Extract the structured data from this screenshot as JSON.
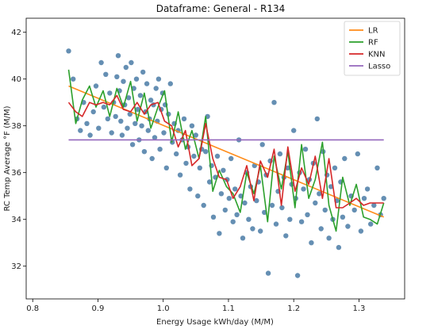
{
  "chart_data": {
    "type": "scatter",
    "title": "Dataframe: General - R134",
    "xlabel": "Energy Usage kWh/day (M/M)",
    "ylabel": "RC Temp Average °F (M/M)",
    "xlim": [
      0.79,
      1.37
    ],
    "ylim": [
      30.6,
      42.6
    ],
    "xticks": [
      "0.8",
      "0.9",
      "1.0",
      "1.1",
      "1.2",
      "1.3"
    ],
    "yticks": [
      "32",
      "34",
      "36",
      "38",
      "40",
      "42"
    ],
    "grid": false,
    "legend_position": "top-right",
    "scatter_color": "#4a7ba6",
    "points": [
      [
        0.855,
        41.2
      ],
      [
        0.862,
        40.0
      ],
      [
        0.868,
        38.3
      ],
      [
        0.873,
        37.8
      ],
      [
        0.878,
        39.0
      ],
      [
        0.883,
        38.1
      ],
      [
        0.888,
        37.6
      ],
      [
        0.893,
        38.6
      ],
      [
        0.897,
        39.7
      ],
      [
        0.901,
        37.9
      ],
      [
        0.905,
        40.7
      ],
      [
        0.909,
        38.8
      ],
      [
        0.912,
        40.2
      ],
      [
        0.915,
        38.3
      ],
      [
        0.918,
        39.4
      ],
      [
        0.921,
        37.7
      ],
      [
        0.924,
        39.0
      ],
      [
        0.927,
        38.4
      ],
      [
        0.929,
        40.1
      ],
      [
        0.931,
        41.0
      ],
      [
        0.933,
        39.5
      ],
      [
        0.935,
        38.2
      ],
      [
        0.937,
        37.6
      ],
      [
        0.939,
        39.9
      ],
      [
        0.941,
        38.9
      ],
      [
        0.943,
        40.5
      ],
      [
        0.945,
        37.9
      ],
      [
        0.947,
        39.2
      ],
      [
        0.949,
        38.5
      ],
      [
        0.951,
        40.7
      ],
      [
        0.953,
        37.2
      ],
      [
        0.955,
        39.6
      ],
      [
        0.957,
        38.1
      ],
      [
        0.959,
        40.0
      ],
      [
        0.961,
        38.7
      ],
      [
        0.963,
        37.4
      ],
      [
        0.965,
        39.3
      ],
      [
        0.967,
        38.0
      ],
      [
        0.969,
        40.3
      ],
      [
        0.971,
        36.9
      ],
      [
        0.973,
        38.6
      ],
      [
        0.975,
        39.8
      ],
      [
        0.977,
        37.8
      ],
      [
        0.979,
        38.3
      ],
      [
        0.981,
        39.1
      ],
      [
        0.983,
        36.6
      ],
      [
        0.985,
        38.9
      ],
      [
        0.987,
        37.5
      ],
      [
        0.989,
        39.6
      ],
      [
        0.991,
        38.2
      ],
      [
        0.993,
        40.0
      ],
      [
        0.995,
        37.0
      ],
      [
        0.997,
        38.7
      ],
      [
        0.999,
        39.4
      ],
      [
        1.001,
        37.7
      ],
      [
        1.003,
        38.9
      ],
      [
        1.005,
        36.2
      ],
      [
        1.008,
        38.5
      ],
      [
        1.011,
        39.8
      ],
      [
        1.014,
        37.3
      ],
      [
        1.017,
        38.1
      ],
      [
        1.02,
        36.8
      ],
      [
        1.023,
        37.8
      ],
      [
        1.026,
        35.9
      ],
      [
        1.029,
        37.4
      ],
      [
        1.032,
        38.3
      ],
      [
        1.035,
        36.4
      ],
      [
        1.038,
        37.1
      ],
      [
        1.041,
        35.3
      ],
      [
        1.044,
        38.0
      ],
      [
        1.047,
        36.7
      ],
      [
        1.05,
        37.6
      ],
      [
        1.053,
        35.0
      ],
      [
        1.056,
        36.2
      ],
      [
        1.059,
        37.0
      ],
      [
        1.062,
        34.6
      ],
      [
        1.065,
        36.9
      ],
      [
        1.068,
        38.4
      ],
      [
        1.071,
        35.6
      ],
      [
        1.074,
        36.3
      ],
      [
        1.077,
        34.1
      ],
      [
        1.08,
        35.8
      ],
      [
        1.083,
        36.7
      ],
      [
        1.086,
        33.4
      ],
      [
        1.089,
        35.1
      ],
      [
        1.092,
        36.1
      ],
      [
        1.095,
        34.4
      ],
      [
        1.098,
        35.7
      ],
      [
        1.101,
        34.9
      ],
      [
        1.104,
        36.6
      ],
      [
        1.107,
        33.9
      ],
      [
        1.11,
        35.3
      ],
      [
        1.113,
        34.2
      ],
      [
        1.116,
        37.4
      ],
      [
        1.119,
        35.0
      ],
      [
        1.122,
        33.2
      ],
      [
        1.125,
        34.7
      ],
      [
        1.128,
        36.0
      ],
      [
        1.131,
        34.0
      ],
      [
        1.134,
        35.4
      ],
      [
        1.137,
        33.6
      ],
      [
        1.14,
        36.3
      ],
      [
        1.143,
        34.8
      ],
      [
        1.146,
        35.6
      ],
      [
        1.149,
        33.5
      ],
      [
        1.152,
        37.2
      ],
      [
        1.155,
        34.3
      ],
      [
        1.158,
        35.9
      ],
      [
        1.161,
        31.7
      ],
      [
        1.164,
        36.5
      ],
      [
        1.167,
        34.6
      ],
      [
        1.17,
        39.0
      ],
      [
        1.173,
        33.8
      ],
      [
        1.176,
        35.2
      ],
      [
        1.179,
        36.8
      ],
      [
        1.182,
        34.5
      ],
      [
        1.185,
        35.8
      ],
      [
        1.188,
        33.3
      ],
      [
        1.191,
        36.2
      ],
      [
        1.194,
        34.0
      ],
      [
        1.197,
        35.5
      ],
      [
        1.2,
        37.8
      ],
      [
        1.203,
        34.9
      ],
      [
        1.206,
        31.6
      ],
      [
        1.209,
        36.0
      ],
      [
        1.212,
        33.9
      ],
      [
        1.215,
        35.3
      ],
      [
        1.218,
        37.0
      ],
      [
        1.221,
        34.2
      ],
      [
        1.224,
        35.7
      ],
      [
        1.227,
        33.0
      ],
      [
        1.23,
        36.4
      ],
      [
        1.233,
        34.7
      ],
      [
        1.236,
        38.3
      ],
      [
        1.239,
        35.1
      ],
      [
        1.242,
        33.6
      ],
      [
        1.245,
        36.9
      ],
      [
        1.248,
        34.4
      ],
      [
        1.251,
        35.9
      ],
      [
        1.254,
        33.2
      ],
      [
        1.257,
        35.4
      ],
      [
        1.26,
        34.0
      ],
      [
        1.263,
        36.2
      ],
      [
        1.266,
        34.8
      ],
      [
        1.269,
        32.8
      ],
      [
        1.272,
        35.6
      ],
      [
        1.275,
        34.1
      ],
      [
        1.278,
        36.6
      ],
      [
        1.283,
        33.7
      ],
      [
        1.288,
        35.0
      ],
      [
        1.293,
        34.4
      ],
      [
        1.298,
        36.8
      ],
      [
        1.303,
        33.5
      ],
      [
        1.308,
        34.9
      ],
      [
        1.313,
        35.3
      ],
      [
        1.318,
        33.8
      ],
      [
        1.323,
        34.6
      ],
      [
        1.328,
        36.2
      ],
      [
        1.333,
        34.2
      ],
      [
        1.338,
        34.9
      ]
    ],
    "series": [
      {
        "name": "LR",
        "color": "#ff8c1a",
        "x": [
          0.855,
          1.338
        ],
        "y": [
          39.7,
          34.1
        ]
      },
      {
        "name": "RF",
        "color": "#2ca02c",
        "x": [
          0.855,
          0.866,
          0.876,
          0.887,
          0.897,
          0.908,
          0.918,
          0.929,
          0.939,
          0.95,
          0.96,
          0.971,
          0.981,
          0.992,
          1.002,
          1.013,
          1.023,
          1.034,
          1.044,
          1.055,
          1.065,
          1.076,
          1.086,
          1.097,
          1.107,
          1.118,
          1.128,
          1.139,
          1.149,
          1.16,
          1.17,
          1.181,
          1.191,
          1.202,
          1.212,
          1.223,
          1.233,
          1.244,
          1.254,
          1.265,
          1.275,
          1.286,
          1.296,
          1.307,
          1.317,
          1.328,
          1.338
        ],
        "y": [
          40.4,
          38.1,
          39.1,
          39.7,
          38.8,
          39.5,
          38.4,
          39.6,
          38.8,
          39.9,
          38.2,
          39.4,
          37.9,
          38.8,
          39.5,
          37.3,
          38.6,
          37.0,
          37.8,
          36.6,
          38.4,
          35.2,
          36.1,
          35.4,
          35.1,
          34.3,
          36.0,
          35.1,
          36.3,
          33.9,
          36.7,
          35.3,
          36.9,
          34.5,
          37.2,
          34.9,
          35.7,
          37.3,
          34.6,
          33.5,
          35.8,
          34.6,
          35.5,
          34.1,
          34.0,
          33.8,
          34.7
        ]
      },
      {
        "name": "KNN",
        "color": "#d62728",
        "x": [
          0.855,
          0.866,
          0.876,
          0.887,
          0.897,
          0.908,
          0.918,
          0.929,
          0.939,
          0.95,
          0.96,
          0.971,
          0.981,
          0.992,
          1.002,
          1.013,
          1.023,
          1.034,
          1.044,
          1.055,
          1.065,
          1.076,
          1.086,
          1.097,
          1.107,
          1.118,
          1.128,
          1.139,
          1.149,
          1.16,
          1.17,
          1.181,
          1.191,
          1.202,
          1.212,
          1.223,
          1.233,
          1.244,
          1.254,
          1.265,
          1.275,
          1.286,
          1.296,
          1.307,
          1.317,
          1.328,
          1.338
        ],
        "y": [
          39.0,
          38.6,
          38.4,
          39.0,
          38.9,
          39.0,
          38.9,
          39.3,
          38.7,
          38.6,
          39.0,
          38.5,
          38.9,
          39.0,
          38.2,
          38.0,
          37.1,
          37.8,
          36.3,
          36.6,
          38.1,
          36.6,
          35.8,
          35.7,
          34.9,
          35.4,
          36.3,
          34.8,
          36.5,
          35.8,
          37.0,
          34.6,
          37.1,
          35.2,
          36.2,
          35.5,
          36.7,
          34.9,
          36.6,
          34.5,
          34.5,
          34.7,
          34.9,
          34.6,
          34.7,
          34.7,
          34.7
        ]
      },
      {
        "name": "Lasso",
        "color": "#9467bd",
        "x": [
          0.855,
          1.338
        ],
        "y": [
          37.4,
          37.4
        ]
      }
    ]
  }
}
